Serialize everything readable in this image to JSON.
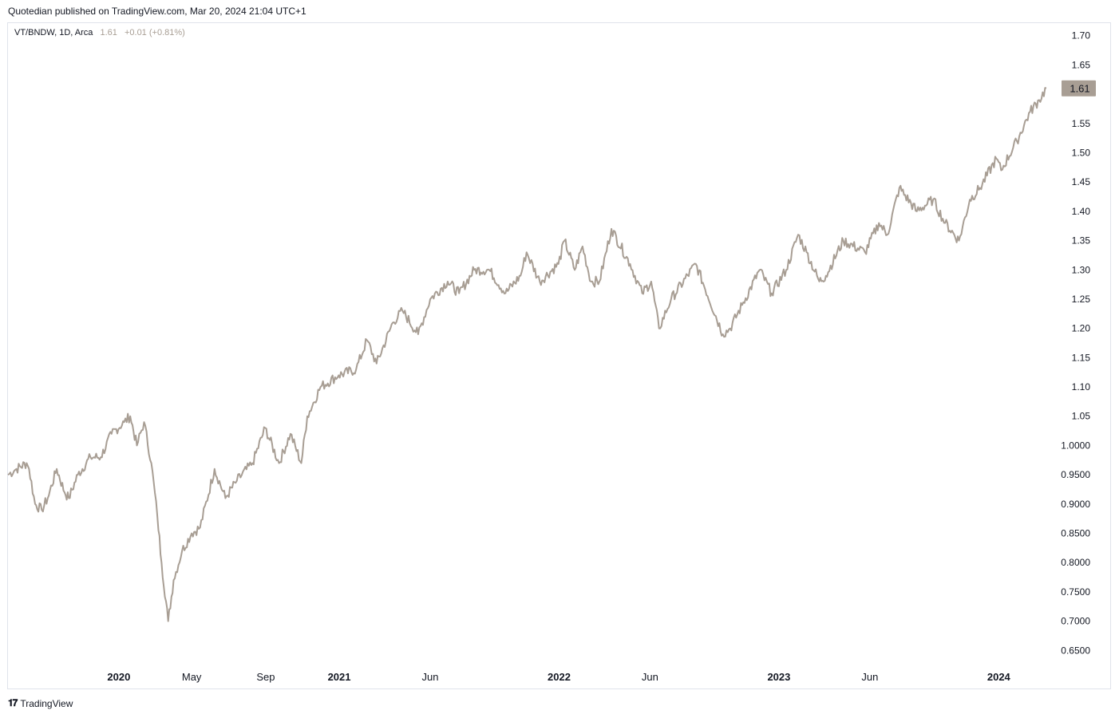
{
  "header": {
    "text": "Quotedian published on TradingView.com, Mar 20, 2024 21:04 UTC+1"
  },
  "legend": {
    "symbol": "VT/BNDW, 1D, Arca",
    "value": "1.61",
    "change": "+0.01 (+0.81%)"
  },
  "footer": {
    "logo_icon": "tradingview-logo-icon",
    "brand": "TradingView"
  },
  "colors": {
    "line": "#a89e94",
    "badge": "#a89e94",
    "axis_text": "#131722",
    "border": "#e0e3eb"
  },
  "chart_data": {
    "type": "line",
    "title": "",
    "xlabel": "",
    "ylabel": "",
    "grid": false,
    "ylim": [
      0.63,
      1.72
    ],
    "xlim": [
      "2019-07-01",
      "2024-04-01"
    ],
    "y_ticks": [
      {
        "value": 1.7,
        "label": "1.70"
      },
      {
        "value": 1.65,
        "label": "1.65"
      },
      {
        "value": 1.55,
        "label": "1.55"
      },
      {
        "value": 1.5,
        "label": "1.50"
      },
      {
        "value": 1.45,
        "label": "1.45"
      },
      {
        "value": 1.4,
        "label": "1.40"
      },
      {
        "value": 1.35,
        "label": "1.35"
      },
      {
        "value": 1.3,
        "label": "1.30"
      },
      {
        "value": 1.25,
        "label": "1.25"
      },
      {
        "value": 1.2,
        "label": "1.20"
      },
      {
        "value": 1.15,
        "label": "1.15"
      },
      {
        "value": 1.1,
        "label": "1.10"
      },
      {
        "value": 1.05,
        "label": "1.05"
      },
      {
        "value": 1.0,
        "label": "1.0000"
      },
      {
        "value": 0.95,
        "label": "0.9500"
      },
      {
        "value": 0.9,
        "label": "0.9000"
      },
      {
        "value": 0.85,
        "label": "0.8500"
      },
      {
        "value": 0.8,
        "label": "0.8000"
      },
      {
        "value": 0.75,
        "label": "0.7500"
      },
      {
        "value": 0.7,
        "label": "0.7000"
      },
      {
        "value": 0.65,
        "label": "0.6500"
      }
    ],
    "x_ticks": [
      {
        "date": "2020-01-01",
        "label": "2020",
        "bold": true
      },
      {
        "date": "2020-05-01",
        "label": "May",
        "bold": false
      },
      {
        "date": "2020-09-01",
        "label": "Sep",
        "bold": false
      },
      {
        "date": "2021-01-01",
        "label": "2021",
        "bold": true
      },
      {
        "date": "2021-06-01",
        "label": "Jun",
        "bold": false
      },
      {
        "date": "2022-01-01",
        "label": "2022",
        "bold": true
      },
      {
        "date": "2022-06-01",
        "label": "Jun",
        "bold": false
      },
      {
        "date": "2023-01-01",
        "label": "2023",
        "bold": true
      },
      {
        "date": "2023-06-01",
        "label": "Jun",
        "bold": false
      },
      {
        "date": "2024-01-01",
        "label": "2024",
        "bold": true
      }
    ],
    "last_price": {
      "value": 1.61,
      "label": "1.61"
    },
    "series": [
      {
        "points": [
          [
            "2019-07-01",
            0.95
          ],
          [
            "2019-07-15",
            0.96
          ],
          [
            "2019-08-01",
            0.97
          ],
          [
            "2019-08-05",
            0.96
          ],
          [
            "2019-08-15",
            0.9
          ],
          [
            "2019-08-26",
            0.89
          ],
          [
            "2019-09-05",
            0.91
          ],
          [
            "2019-09-20",
            0.96
          ],
          [
            "2019-10-03",
            0.92
          ],
          [
            "2019-10-10",
            0.91
          ],
          [
            "2019-10-25",
            0.95
          ],
          [
            "2019-11-15",
            0.98
          ],
          [
            "2019-12-02",
            0.98
          ],
          [
            "2019-12-20",
            1.02
          ],
          [
            "2020-01-10",
            1.04
          ],
          [
            "2020-01-20",
            1.05
          ],
          [
            "2020-01-31",
            1.0
          ],
          [
            "2020-02-12",
            1.04
          ],
          [
            "2020-02-24",
            0.97
          ],
          [
            "2020-03-05",
            0.88
          ],
          [
            "2020-03-12",
            0.8
          ],
          [
            "2020-03-23",
            0.7
          ],
          [
            "2020-04-01",
            0.77
          ],
          [
            "2020-04-15",
            0.82
          ],
          [
            "2020-05-01",
            0.85
          ],
          [
            "2020-05-15",
            0.86
          ],
          [
            "2020-06-08",
            0.96
          ],
          [
            "2020-06-26",
            0.91
          ],
          [
            "2020-07-15",
            0.94
          ],
          [
            "2020-08-10",
            0.97
          ],
          [
            "2020-08-31",
            1.03
          ],
          [
            "2020-09-23",
            0.97
          ],
          [
            "2020-10-12",
            1.02
          ],
          [
            "2020-10-30",
            0.97
          ],
          [
            "2020-11-09",
            1.05
          ],
          [
            "2020-12-01",
            1.1
          ],
          [
            "2020-12-31",
            1.12
          ],
          [
            "2021-01-29",
            1.13
          ],
          [
            "2021-02-16",
            1.18
          ],
          [
            "2021-03-04",
            1.14
          ],
          [
            "2021-03-31",
            1.21
          ],
          [
            "2021-04-16",
            1.23
          ],
          [
            "2021-05-12",
            1.19
          ],
          [
            "2021-06-01",
            1.25
          ],
          [
            "2021-06-30",
            1.28
          ],
          [
            "2021-07-19",
            1.26
          ],
          [
            "2021-08-13",
            1.3
          ],
          [
            "2021-09-07",
            1.3
          ],
          [
            "2021-10-04",
            1.26
          ],
          [
            "2021-10-29",
            1.29
          ],
          [
            "2021-11-08",
            1.33
          ],
          [
            "2021-11-30",
            1.28
          ],
          [
            "2021-12-31",
            1.31
          ],
          [
            "2022-01-10",
            1.35
          ],
          [
            "2022-01-27",
            1.3
          ],
          [
            "2022-02-09",
            1.34
          ],
          [
            "2022-02-23",
            1.28
          ],
          [
            "2022-03-09",
            1.28
          ],
          [
            "2022-03-29",
            1.37
          ],
          [
            "2022-04-29",
            1.31
          ],
          [
            "2022-05-19",
            1.26
          ],
          [
            "2022-06-03",
            1.28
          ],
          [
            "2022-06-16",
            1.2
          ],
          [
            "2022-07-06",
            1.25
          ],
          [
            "2022-08-16",
            1.31
          ],
          [
            "2022-09-30",
            1.19
          ],
          [
            "2022-10-12",
            1.2
          ],
          [
            "2022-11-01",
            1.24
          ],
          [
            "2022-11-30",
            1.3
          ],
          [
            "2022-12-20",
            1.26
          ],
          [
            "2023-01-13",
            1.3
          ],
          [
            "2023-02-02",
            1.36
          ],
          [
            "2023-02-16",
            1.33
          ],
          [
            "2023-03-09",
            1.28
          ],
          [
            "2023-03-20",
            1.29
          ],
          [
            "2023-04-18",
            1.35
          ],
          [
            "2023-05-24",
            1.33
          ],
          [
            "2023-06-16",
            1.38
          ],
          [
            "2023-06-30",
            1.36
          ],
          [
            "2023-07-20",
            1.44
          ],
          [
            "2023-08-18",
            1.4
          ],
          [
            "2023-09-14",
            1.42
          ],
          [
            "2023-10-04",
            1.38
          ],
          [
            "2023-10-27",
            1.35
          ],
          [
            "2023-11-14",
            1.42
          ],
          [
            "2023-12-01",
            1.44
          ],
          [
            "2023-12-28",
            1.49
          ],
          [
            "2024-01-05",
            1.47
          ],
          [
            "2024-01-31",
            1.52
          ],
          [
            "2024-02-22",
            1.57
          ],
          [
            "2024-03-08",
            1.59
          ],
          [
            "2024-03-20",
            1.61
          ]
        ]
      }
    ]
  }
}
